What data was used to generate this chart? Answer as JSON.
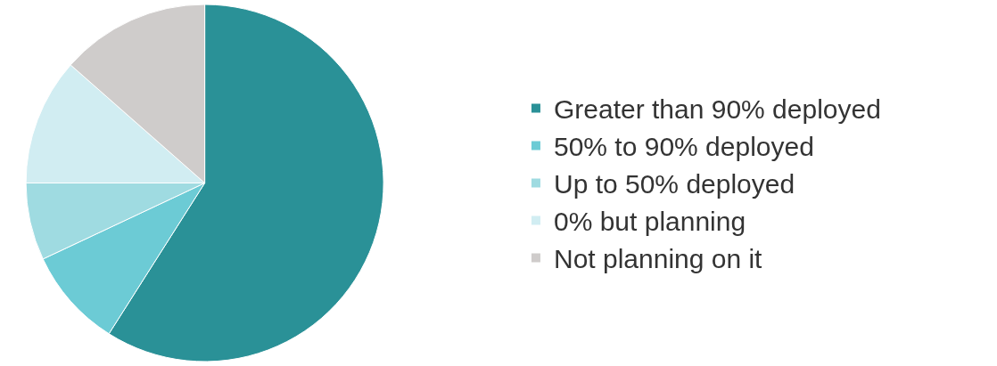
{
  "chart_data": {
    "type": "pie",
    "categories": [
      "Greater than 90% deployed",
      "50% to 90% deployed",
      "Up to 50% deployed",
      "0% but planning",
      "Not planning on it"
    ],
    "values": [
      59,
      9,
      7,
      11.5,
      13.5
    ],
    "colors": [
      "#2a9197",
      "#6ccbd5",
      "#9fdbe1",
      "#d1edf2",
      "#cfcccb"
    ],
    "legend": "right"
  }
}
